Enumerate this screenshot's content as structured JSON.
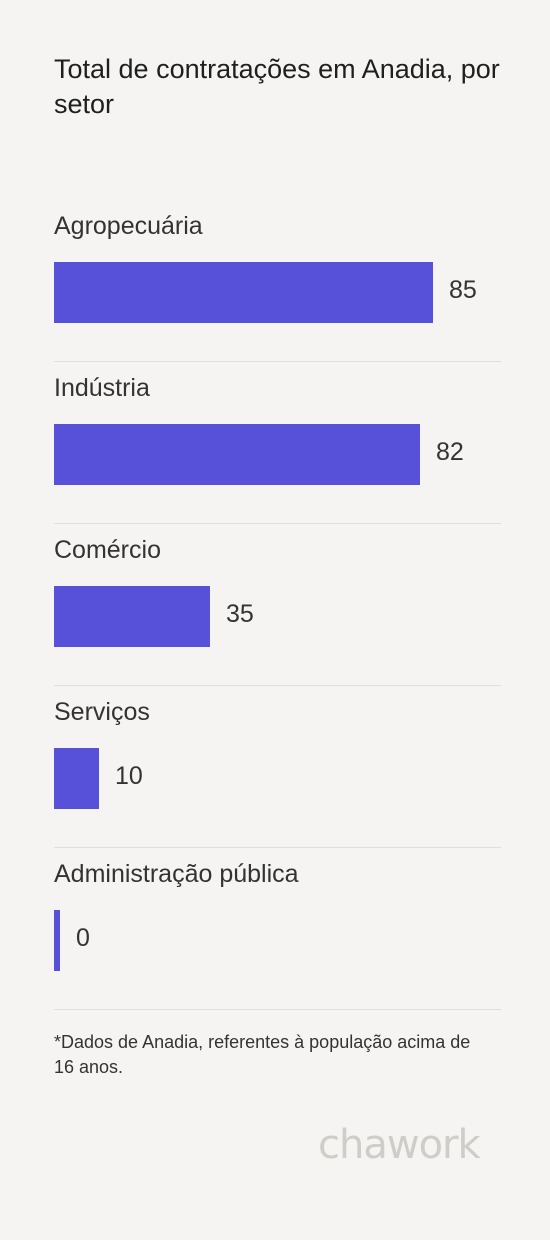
{
  "title": "Total de contratações em Anadia, por setor",
  "chart_data": {
    "type": "bar",
    "orientation": "horizontal",
    "categories": [
      "Agropecuária",
      "Indústria",
      "Comércio",
      "Serviços",
      "Administração pública"
    ],
    "values": [
      85,
      82,
      35,
      10,
      0
    ],
    "xlim": [
      0,
      100
    ],
    "bar_color": "#5651d8",
    "grid": false
  },
  "footnote": "*Dados de Anadia, referentes à população acima de 16 anos.",
  "logo": "chawork"
}
